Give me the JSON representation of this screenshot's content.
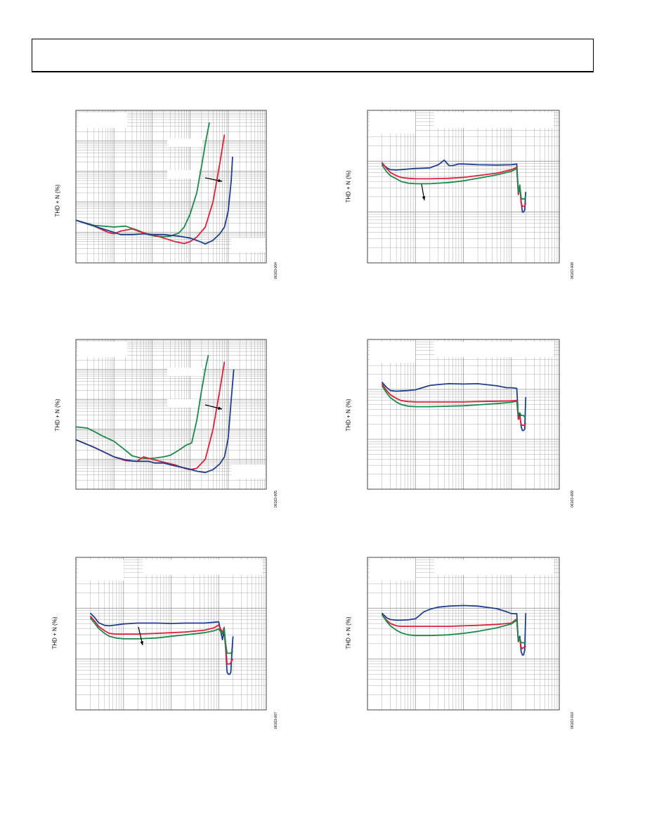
{
  "page": {
    "ylabel": "THD + N (%)",
    "colors": {
      "blue": "#1f3f8f",
      "red": "#e0203a",
      "green": "#1b8a4a",
      "grid": "#999999",
      "frame": "#444444"
    }
  },
  "chart_data": [
    {
      "type": "line",
      "ylabel": "THD + N (%)",
      "figure_number": "06163-004",
      "x_scale": "log",
      "y_scale": "log",
      "annotation": "arrow",
      "series": [
        {
          "color": "green",
          "x": [
            0.0001,
            0.0003,
            0.001,
            0.002,
            0.004,
            0.008,
            0.012,
            0.02,
            0.03,
            0.05,
            0.07,
            0.1,
            0.15,
            0.2,
            0.25,
            0.32
          ],
          "y": [
            0.025,
            0.017,
            0.015,
            0.016,
            0.012,
            0.0085,
            0.0075,
            0.0072,
            0.0075,
            0.0095,
            0.015,
            0.04,
            0.2,
            1.5,
            8,
            40
          ]
        },
        {
          "color": "red",
          "x": [
            0.0001,
            0.0003,
            0.0007,
            0.001,
            0.0015,
            0.003,
            0.006,
            0.01,
            0.02,
            0.04,
            0.07,
            0.1,
            0.15,
            0.25,
            0.4,
            0.6,
            0.8
          ],
          "y": [
            0.025,
            0.016,
            0.01,
            0.009,
            0.011,
            0.013,
            0.0095,
            0.0085,
            0.0065,
            0.005,
            0.0043,
            0.005,
            0.007,
            0.015,
            0.1,
            1.8,
            16
          ]
        },
        {
          "color": "blue",
          "x": [
            0.0001,
            0.0003,
            0.001,
            0.0015,
            0.003,
            0.006,
            0.01,
            0.02,
            0.05,
            0.1,
            0.18,
            0.25,
            0.4,
            0.6,
            0.8,
            1.0,
            1.2,
            1.3
          ],
          "y": [
            0.025,
            0.016,
            0.01,
            0.0085,
            0.0085,
            0.009,
            0.0085,
            0.0085,
            0.0075,
            0.0065,
            0.005,
            0.0042,
            0.0055,
            0.009,
            0.015,
            0.05,
            0.5,
            3
          ]
        }
      ]
    },
    {
      "type": "line",
      "ylabel": "THD + N (%)",
      "figure_number": "06163-005",
      "x_scale": "log",
      "y_scale": "log",
      "annotation": "arrow",
      "series": [
        {
          "color": "green",
          "x": [
            0.0001,
            0.0002,
            0.0003,
            0.0005,
            0.001,
            0.002,
            0.003,
            0.005,
            0.008,
            0.012,
            0.02,
            0.03,
            0.05,
            0.08,
            0.11,
            0.15,
            0.2,
            0.25,
            0.3
          ],
          "y": [
            0.12,
            0.11,
            0.085,
            0.06,
            0.04,
            0.02,
            0.013,
            0.011,
            0.0105,
            0.011,
            0.012,
            0.0135,
            0.02,
            0.03,
            0.035,
            0.2,
            2,
            10,
            30
          ]
        },
        {
          "color": "red",
          "x": [
            0.0001,
            0.0003,
            0.0007,
            0.001,
            0.002,
            0.004,
            0.006,
            0.01,
            0.02,
            0.04,
            0.07,
            0.1,
            0.15,
            0.25,
            0.4,
            0.6,
            0.8
          ],
          "y": [
            0.045,
            0.025,
            0.015,
            0.012,
            0.009,
            0.0085,
            0.012,
            0.01,
            0.008,
            0.0065,
            0.005,
            0.0045,
            0.005,
            0.01,
            0.1,
            2,
            18
          ]
        },
        {
          "color": "blue",
          "x": [
            0.0001,
            0.0003,
            0.001,
            0.002,
            0.004,
            0.008,
            0.012,
            0.02,
            0.04,
            0.08,
            0.15,
            0.25,
            0.4,
            0.6,
            0.8,
            1.0,
            1.2,
            1.4
          ],
          "y": [
            0.045,
            0.025,
            0.012,
            0.0095,
            0.0085,
            0.0085,
            0.0075,
            0.0075,
            0.006,
            0.005,
            0.004,
            0.0036,
            0.0045,
            0.007,
            0.012,
            0.05,
            1,
            10
          ]
        }
      ]
    },
    {
      "type": "line",
      "ylabel": "THD + N (%)",
      "figure_number": "06163-007",
      "x_scale": "log",
      "y_scale": "log",
      "annotation": "arrow",
      "series": [
        {
          "color": "blue",
          "x": [
            20,
            25,
            30,
            40,
            50,
            70,
            100,
            200,
            500,
            1000,
            2000,
            5000,
            8000,
            10000,
            12000,
            13000,
            14000,
            15000,
            16000,
            17000,
            18000,
            19000,
            20000
          ],
          "y": [
            0.008,
            0.0065,
            0.0052,
            0.0046,
            0.0045,
            0.0047,
            0.0049,
            0.0051,
            0.0051,
            0.005,
            0.0051,
            0.0051,
            0.0053,
            0.0054,
            0.0024,
            0.0036,
            0.0016,
            0.00055,
            0.0005,
            0.0005,
            0.00055,
            0.0014,
            0.0028
          ]
        },
        {
          "color": "red",
          "x": [
            20,
            25,
            30,
            40,
            50,
            70,
            100,
            200,
            500,
            1000,
            2000,
            5000,
            8000,
            10000,
            12000,
            13000,
            14000,
            15000,
            16000,
            17000,
            18000,
            19000,
            20000
          ],
          "y": [
            0.007,
            0.0055,
            0.0044,
            0.0036,
            0.0032,
            0.0031,
            0.0031,
            0.0031,
            0.0032,
            0.0033,
            0.0034,
            0.0037,
            0.0041,
            0.0047,
            0.0033,
            0.0042,
            0.0018,
            0.0008,
            0.0008,
            0.0008,
            0.00085,
            0.00095,
            0.001
          ]
        },
        {
          "color": "green",
          "x": [
            20,
            25,
            30,
            40,
            50,
            70,
            100,
            200,
            500,
            1000,
            2000,
            5000,
            8000,
            10000,
            12000,
            13000,
            14000,
            15000,
            16000,
            17000,
            18000,
            19000,
            20000
          ],
          "y": [
            0.0065,
            0.005,
            0.004,
            0.0032,
            0.0028,
            0.0026,
            0.0025,
            0.0025,
            0.0026,
            0.0028,
            0.003,
            0.0033,
            0.0036,
            0.0039,
            0.0031,
            0.004,
            0.002,
            0.0013,
            0.0013,
            0.0013,
            0.0013,
            0.0014,
            0.0014
          ]
        }
      ]
    },
    {
      "type": "line",
      "ylabel": "THD + N (%)",
      "figure_number": "06163-008",
      "x_scale": "log",
      "y_scale": "log",
      "annotation": "arrow",
      "series": [
        {
          "color": "blue",
          "x": [
            20,
            25,
            30,
            40,
            50,
            70,
            100,
            200,
            300,
            400,
            500,
            600,
            800,
            1000,
            2000,
            5000,
            10000,
            13000,
            14000,
            15000,
            16000,
            17000,
            18000,
            19000,
            20000
          ],
          "y": [
            0.009,
            0.0075,
            0.0068,
            0.0067,
            0.0068,
            0.007,
            0.0072,
            0.0074,
            0.0085,
            0.0105,
            0.0082,
            0.0082,
            0.0088,
            0.0088,
            0.0085,
            0.0084,
            0.0085,
            0.0088,
            0.0025,
            0.0032,
            0.0016,
            0.001,
            0.001,
            0.0011,
            0.0025
          ]
        },
        {
          "color": "red",
          "x": [
            20,
            25,
            30,
            40,
            50,
            70,
            100,
            200,
            500,
            1000,
            2000,
            5000,
            10000,
            13000,
            14000,
            15000,
            16000,
            17000,
            18000,
            19000,
            20000
          ],
          "y": [
            0.0095,
            0.0072,
            0.006,
            0.0052,
            0.0048,
            0.0046,
            0.0045,
            0.0045,
            0.0046,
            0.0048,
            0.0052,
            0.0058,
            0.0068,
            0.0076,
            0.0022,
            0.0032,
            0.0015,
            0.0013,
            0.0013,
            0.0013,
            0.0015
          ]
        },
        {
          "color": "green",
          "x": [
            20,
            25,
            30,
            40,
            50,
            70,
            100,
            200,
            500,
            1000,
            2000,
            5000,
            10000,
            13000,
            14000,
            15000,
            16000,
            17000,
            18000,
            19000,
            20000
          ],
          "y": [
            0.0085,
            0.0062,
            0.0052,
            0.0045,
            0.004,
            0.0037,
            0.0036,
            0.0036,
            0.0038,
            0.0041,
            0.0046,
            0.0054,
            0.0063,
            0.0072,
            0.0024,
            0.0034,
            0.0019,
            0.0018,
            0.0018,
            0.0018,
            0.0021
          ]
        }
      ]
    },
    {
      "type": "line",
      "ylabel": "THD + N (%)",
      "figure_number": "06163-009",
      "x_scale": "log",
      "y_scale": "log",
      "series": [
        {
          "color": "blue",
          "x": [
            20,
            25,
            30,
            40,
            50,
            70,
            100,
            200,
            300,
            500,
            1000,
            2000,
            5000,
            8000,
            10000,
            13000,
            14000,
            15000,
            16000,
            17000,
            18000,
            19000,
            20000
          ],
          "y": [
            0.014,
            0.011,
            0.0095,
            0.0092,
            0.0093,
            0.0095,
            0.0098,
            0.012,
            0.0125,
            0.013,
            0.0128,
            0.013,
            0.0118,
            0.0108,
            0.0108,
            0.0105,
            0.0028,
            0.0033,
            0.0018,
            0.0015,
            0.0015,
            0.0016,
            0.007
          ]
        },
        {
          "color": "red",
          "x": [
            20,
            25,
            30,
            40,
            50,
            70,
            100,
            200,
            500,
            1000,
            2000,
            5000,
            10000,
            13000,
            14000,
            15000,
            16000,
            17000,
            18000,
            19000,
            20000
          ],
          "y": [
            0.013,
            0.0095,
            0.0078,
            0.0066,
            0.006,
            0.0057,
            0.0056,
            0.0056,
            0.0056,
            0.0056,
            0.0057,
            0.0058,
            0.0059,
            0.006,
            0.0025,
            0.0028,
            0.002,
            0.0019,
            0.0019,
            0.0019,
            0.0021
          ]
        },
        {
          "color": "green",
          "x": [
            20,
            25,
            30,
            40,
            50,
            70,
            100,
            200,
            500,
            1000,
            2000,
            5000,
            10000,
            13000,
            14000,
            15000,
            16000,
            17000,
            18000,
            19000,
            20000
          ],
          "y": [
            0.012,
            0.0085,
            0.0068,
            0.0056,
            0.005,
            0.0046,
            0.0045,
            0.0045,
            0.0046,
            0.0047,
            0.0049,
            0.0052,
            0.0055,
            0.0058,
            0.0032,
            0.0034,
            0.003,
            0.003,
            0.003,
            0.0028,
            0.003
          ]
        }
      ]
    },
    {
      "type": "line",
      "ylabel": "THD + N (%)",
      "figure_number": "06163-010",
      "x_scale": "log",
      "y_scale": "log",
      "series": [
        {
          "color": "blue",
          "x": [
            20,
            25,
            30,
            40,
            50,
            70,
            100,
            150,
            200,
            300,
            500,
            1000,
            2000,
            5000,
            8000,
            10000,
            13000,
            14000,
            15000,
            16000,
            17000,
            18000,
            19000,
            20000
          ],
          "y": [
            0.008,
            0.0065,
            0.006,
            0.0058,
            0.0058,
            0.0059,
            0.0062,
            0.0085,
            0.0095,
            0.0105,
            0.011,
            0.0113,
            0.011,
            0.0098,
            0.0085,
            0.0078,
            0.0078,
            0.0022,
            0.0028,
            0.0014,
            0.0012,
            0.0012,
            0.0015,
            0.008
          ]
        },
        {
          "color": "red",
          "x": [
            20,
            25,
            30,
            40,
            50,
            70,
            100,
            200,
            500,
            1000,
            2000,
            5000,
            10000,
            13000,
            14000,
            15000,
            16000,
            17000,
            18000,
            19000,
            20000
          ],
          "y": [
            0.0075,
            0.0058,
            0.005,
            0.0045,
            0.0044,
            0.0044,
            0.0044,
            0.0044,
            0.0044,
            0.0045,
            0.0046,
            0.0048,
            0.0051,
            0.0062,
            0.0022,
            0.0026,
            0.0017,
            0.0016,
            0.0017,
            0.0017,
            0.0018
          ]
        },
        {
          "color": "green",
          "x": [
            20,
            25,
            30,
            40,
            50,
            70,
            100,
            200,
            500,
            1000,
            2000,
            5000,
            10000,
            13000,
            14000,
            15000,
            16000,
            17000,
            18000,
            19000,
            20000
          ],
          "y": [
            0.0075,
            0.0055,
            0.0045,
            0.0037,
            0.0033,
            0.003,
            0.0029,
            0.0029,
            0.003,
            0.0032,
            0.0035,
            0.0041,
            0.0049,
            0.0058,
            0.0023,
            0.0026,
            0.0021,
            0.0021,
            0.0021,
            0.0021,
            0.0022
          ]
        }
      ]
    }
  ]
}
